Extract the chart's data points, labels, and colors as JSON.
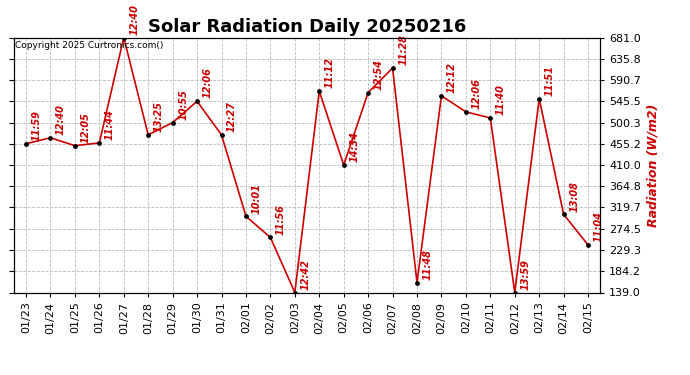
{
  "title": "Solar Radiation Daily 20250216",
  "copyright": "Copyright 2025 Curtronics.com()",
  "ylabel": "Radiation (W/m2)",
  "background_color": "#ffffff",
  "line_color": "#cc0000",
  "marker_color": "#000000",
  "label_color": "#cc0000",
  "grid_color": "#bbbbbb",
  "ylim": [
    139.0,
    681.0
  ],
  "yticks": [
    139.0,
    184.2,
    229.3,
    274.5,
    319.7,
    364.8,
    410.0,
    455.2,
    500.3,
    545.5,
    590.7,
    635.8,
    681.0
  ],
  "dates": [
    "01/23",
    "01/24",
    "01/25",
    "01/26",
    "01/27",
    "01/28",
    "01/29",
    "01/30",
    "01/31",
    "02/01",
    "02/02",
    "02/03",
    "02/04",
    "02/05",
    "02/06",
    "02/07",
    "02/08",
    "02/09",
    "02/10",
    "02/11",
    "02/12",
    "02/13",
    "02/14",
    "02/15"
  ],
  "values": [
    455.2,
    468.0,
    451.0,
    457.0,
    681.0,
    474.0,
    500.3,
    545.5,
    474.0,
    301.0,
    256.0,
    139.0,
    567.0,
    410.0,
    564.0,
    616.0,
    160.0,
    557.0,
    523.0,
    510.0,
    139.0,
    551.0,
    305.0,
    240.0
  ],
  "time_labels": [
    "11:59",
    "12:40",
    "12:05",
    "11:44",
    "12:40",
    "13:25",
    "10:55",
    "12:06",
    "12:27",
    "10:01",
    "11:56",
    "12:42",
    "11:12",
    "14:34",
    "12:54",
    "11:28",
    "11:48",
    "12:12",
    "12:06",
    "11:40",
    "13:59",
    "11:51",
    "13:08",
    "11:04"
  ],
  "title_fontsize": 13,
  "tick_fontsize": 8,
  "time_label_fontsize": 7
}
